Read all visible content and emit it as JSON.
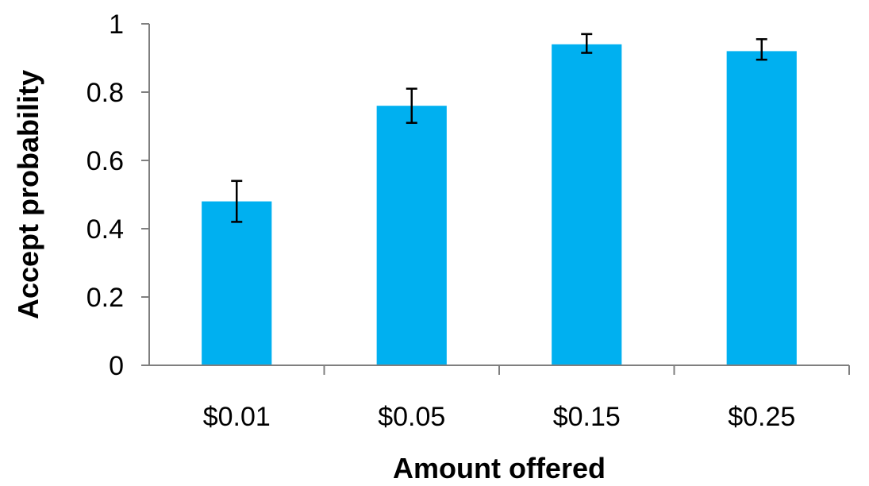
{
  "chart_data": {
    "type": "bar",
    "categories": [
      "$0.01",
      "$0.05",
      "$0.15",
      "$0.25"
    ],
    "values": [
      0.48,
      0.76,
      0.94,
      0.92
    ],
    "error_low": [
      0.42,
      0.71,
      0.915,
      0.895
    ],
    "error_high": [
      0.54,
      0.81,
      0.97,
      0.955
    ],
    "xlabel": "Amount offered",
    "ylabel": "Accept probability",
    "ylim": [
      0,
      1
    ],
    "yticks": [
      "0",
      "0.2",
      "0.4",
      "0.6",
      "0.8",
      "1"
    ],
    "ytick_values": [
      0,
      0.2,
      0.4,
      0.6,
      0.8,
      1
    ],
    "grid": false,
    "legend": "none",
    "bar_color": "#00B0F0",
    "error_bar_color": "#000000"
  }
}
